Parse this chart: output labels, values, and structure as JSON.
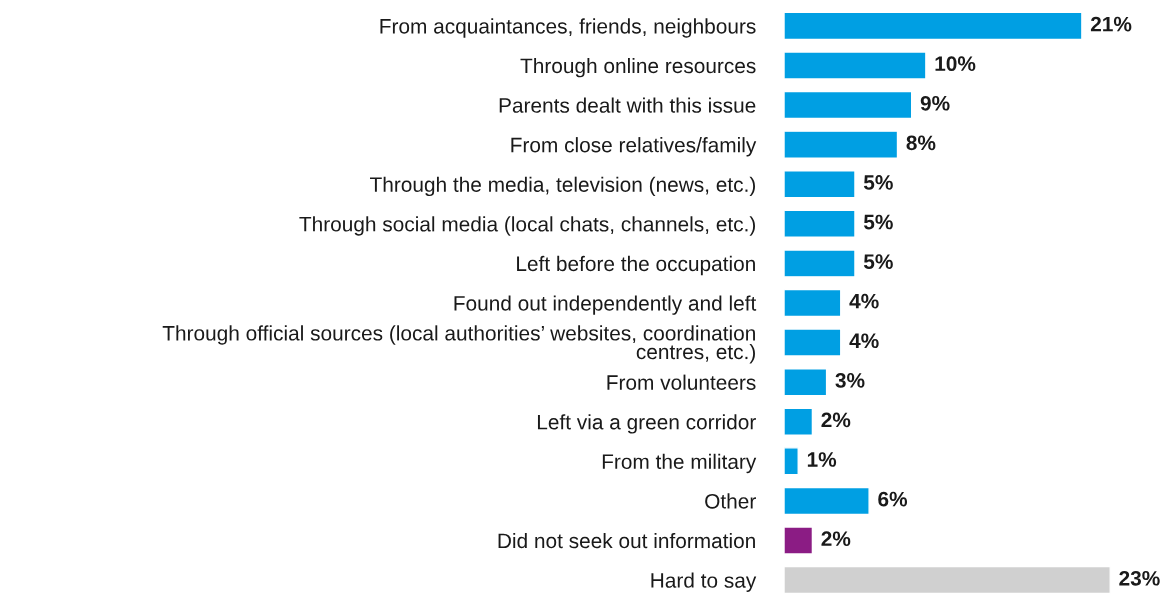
{
  "chart_data": {
    "type": "bar",
    "orientation": "horizontal",
    "tick_labels": "y",
    "categories": [
      "From acquaintances, friends, neighbours",
      "Through online resources",
      "Parents dealt with this issue",
      "From close relatives/family",
      "Through the media, television (news, etc.)",
      "Through social media (local chats, channels, etc.)",
      "Left before the occupation",
      "Found out independently and left",
      "Through official sources (local authorities’ websites, coordination\ncentres, etc.)",
      "From volunteers",
      "Left via a green corridor",
      "From the military",
      "Other",
      "Did not seek out information",
      "Hard to say"
    ],
    "values": [
      21,
      10,
      9,
      8,
      5,
      5,
      5,
      4,
      4,
      3,
      2,
      1,
      6,
      2,
      23
    ],
    "colors": [
      "#009fe3",
      "#009fe3",
      "#009fe3",
      "#009fe3",
      "#009fe3",
      "#009fe3",
      "#009fe3",
      "#009fe3",
      "#009fe3",
      "#009fe3",
      "#009fe3",
      "#009fe3",
      "#009fe3",
      "#8b1c84",
      "#d0d0d0"
    ],
    "value_labels": [
      "21%",
      "10%",
      "9%",
      "8%",
      "5%",
      "5%",
      "5%",
      "4%",
      "4%",
      "3%",
      "2%",
      "1%",
      "6%",
      "2%",
      "23%"
    ]
  }
}
